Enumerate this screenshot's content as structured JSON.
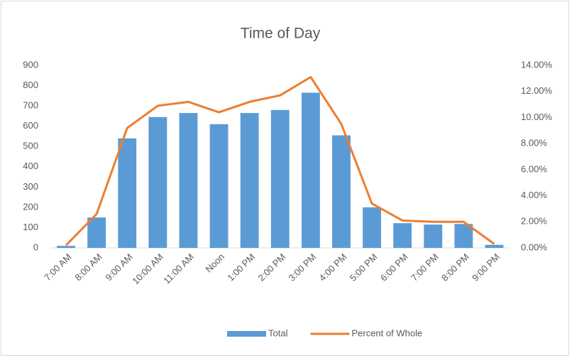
{
  "chart_data": {
    "type": "bar-line",
    "title": "Time of Day",
    "categories": [
      "7:00 AM",
      "8:00 AM",
      "9:00 AM",
      "10:00 AM",
      "11:00 AM",
      "Noon",
      "1:00 PM",
      "2:00 PM",
      "3:00 PM",
      "4:00 PM",
      "5:00 PM",
      "6:00 PM",
      "7:00 PM",
      "8:00 PM",
      "9:00 PM"
    ],
    "series": [
      {
        "name": "Total",
        "type": "bar",
        "color": "#5b9bd5",
        "values": [
          10,
          150,
          540,
          645,
          665,
          610,
          665,
          680,
          765,
          555,
          200,
          122,
          115,
          118,
          15
        ]
      },
      {
        "name": "Percent of Whole",
        "type": "line",
        "axis": "y2",
        "color": "#ed7d31",
        "values": [
          0.2,
          2.6,
          9.2,
          10.9,
          11.2,
          10.4,
          11.2,
          11.7,
          13.1,
          9.5,
          3.4,
          2.1,
          2.0,
          2.0,
          0.3
        ]
      }
    ],
    "ylim": [
      0,
      900
    ],
    "yticks": [
      0,
      100,
      200,
      300,
      400,
      500,
      600,
      700,
      800,
      900
    ],
    "y2lim": [
      0,
      14
    ],
    "y2ticks": [
      {
        "value": 0,
        "label": "0.00%"
      },
      {
        "value": 2,
        "label": "2.00%"
      },
      {
        "value": 4,
        "label": "4.00%"
      },
      {
        "value": 6,
        "label": "6.00%"
      },
      {
        "value": 8,
        "label": "8.00%"
      },
      {
        "value": 10,
        "label": "10.00%"
      },
      {
        "value": 12,
        "label": "12.00%"
      },
      {
        "value": 14,
        "label": "14.00%"
      }
    ],
    "grid": false,
    "legend": "bottom"
  }
}
